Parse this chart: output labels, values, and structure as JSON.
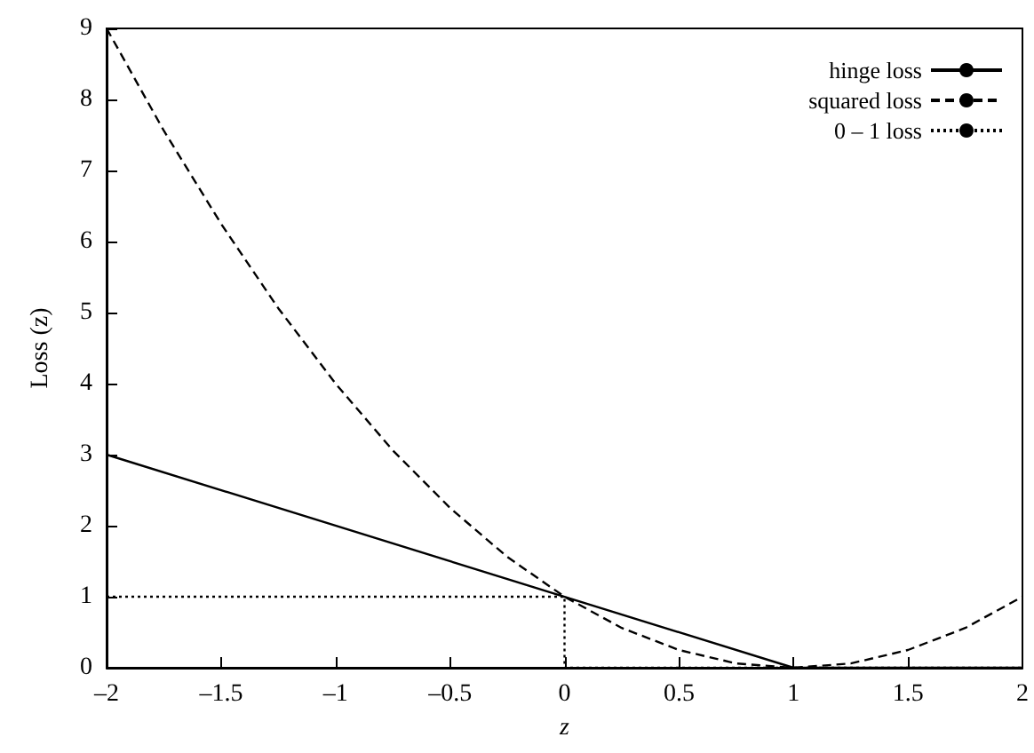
{
  "chart_data": {
    "type": "line",
    "xlabel": "z",
    "ylabel": "Loss (z)",
    "xlim": [
      -2,
      2
    ],
    "ylim": [
      0,
      9
    ],
    "xticks": [
      {
        "value": -2,
        "label": "–2"
      },
      {
        "value": -1.5,
        "label": "–1.5"
      },
      {
        "value": -1,
        "label": "–1"
      },
      {
        "value": -0.5,
        "label": "–0.5"
      },
      0,
      0.5,
      1,
      1.5,
      2
    ],
    "yticks": [
      0,
      1,
      2,
      3,
      4,
      5,
      6,
      7,
      8,
      9
    ],
    "grid": false,
    "legend": "top right",
    "marker": "none",
    "series": [
      {
        "name": "hinge loss",
        "color": "#000000",
        "line_style": "solid",
        "x": [
          -2,
          1,
          2
        ],
        "values": [
          3,
          0,
          0
        ]
      },
      {
        "name": "squared loss",
        "color": "#000000",
        "line_style": "dashed",
        "x": [
          -2,
          -1.75,
          -1.5,
          -1.25,
          -1,
          -0.75,
          -0.5,
          -0.25,
          0,
          0.25,
          0.5,
          0.75,
          1,
          1.25,
          1.5,
          1.75,
          2
        ],
        "values": [
          9,
          7.56,
          6.25,
          5.06,
          4,
          3.06,
          2.25,
          1.56,
          1,
          0.56,
          0.25,
          0.06,
          0,
          0.06,
          0.25,
          0.56,
          1
        ]
      },
      {
        "name": "0 – 1 loss",
        "color": "#000000",
        "line_style": "dotted",
        "x": [
          -2,
          0,
          0,
          2
        ],
        "values": [
          1,
          1,
          0,
          0
        ]
      }
    ]
  }
}
